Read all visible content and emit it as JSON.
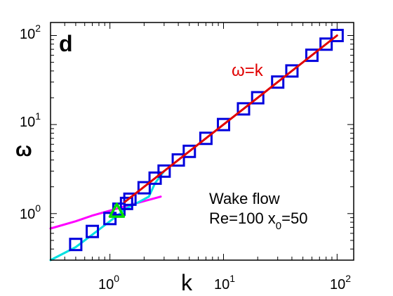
{
  "chart_data": {
    "type": "scatter",
    "panel_label": "d",
    "xlabel": "k",
    "ylabel": "ω",
    "x_scale": "log",
    "y_scale": "log",
    "xlim": [
      0.3,
      140
    ],
    "ylim": [
      0.3,
      140
    ],
    "x_ticks": [
      {
        "value": 1,
        "base": "10",
        "exp": "0"
      },
      {
        "value": 10,
        "base": "10",
        "exp": "1"
      },
      {
        "value": 100,
        "base": "10",
        "exp": "2"
      }
    ],
    "y_ticks": [
      {
        "value": 1,
        "base": "10",
        "exp": "0"
      },
      {
        "value": 10,
        "base": "10",
        "exp": "1"
      },
      {
        "value": 100,
        "base": "10",
        "exp": "2"
      }
    ],
    "grid": false,
    "series": [
      {
        "kind": "line",
        "color": "#e00000",
        "label": "ω=k",
        "points": [
          [
            1.35,
            1.35
          ],
          [
            100,
            100
          ]
        ]
      },
      {
        "kind": "markers",
        "marker": "square",
        "color": "#0000dd",
        "points": [
          [
            0.5,
            0.45
          ],
          [
            0.7,
            0.63
          ],
          [
            1.0,
            0.88
          ],
          [
            1.2,
            1.12
          ],
          [
            1.4,
            1.3
          ],
          [
            1.5,
            1.45
          ],
          [
            2.0,
            1.95
          ],
          [
            2.5,
            2.5
          ],
          [
            3.0,
            3.0
          ],
          [
            4.0,
            4.0
          ],
          [
            5.0,
            5.0
          ],
          [
            7.0,
            7.0
          ],
          [
            10,
            10
          ],
          [
            15,
            15
          ],
          [
            20,
            20
          ],
          [
            30,
            30
          ],
          [
            40,
            40
          ],
          [
            60,
            60
          ],
          [
            80,
            80
          ],
          [
            100,
            100
          ]
        ]
      },
      {
        "kind": "line",
        "color": "#ff00ff",
        "points": [
          [
            0.3,
            0.68
          ],
          [
            0.5,
            0.82
          ],
          [
            0.7,
            0.95
          ],
          [
            1.0,
            1.08
          ],
          [
            1.5,
            1.25
          ],
          [
            2.0,
            1.38
          ],
          [
            2.8,
            1.55
          ]
        ]
      },
      {
        "kind": "line",
        "color": "#00e0e0",
        "points": [
          [
            0.3,
            0.3
          ],
          [
            0.5,
            0.42
          ],
          [
            0.7,
            0.58
          ],
          [
            1.0,
            0.82
          ],
          [
            1.2,
            0.98
          ],
          [
            1.4,
            1.15
          ],
          [
            1.8,
            1.35
          ],
          [
            2.2,
            1.55
          ],
          [
            2.5,
            2.2
          ],
          [
            3.0,
            3.0
          ]
        ]
      },
      {
        "kind": "markers",
        "marker": "triangle",
        "color": "#00dd00",
        "points": [
          [
            1.15,
            1.05
          ]
        ]
      }
    ],
    "annotations": [
      {
        "id": "line-label",
        "text": "ω=k",
        "color": "#e00000"
      },
      {
        "id": "flow-label",
        "line1": "Wake flow",
        "line2_prefix": "Re=100 x",
        "line2_sub": "0",
        "line2_suffix": "=50",
        "color": "#000000"
      }
    ]
  }
}
